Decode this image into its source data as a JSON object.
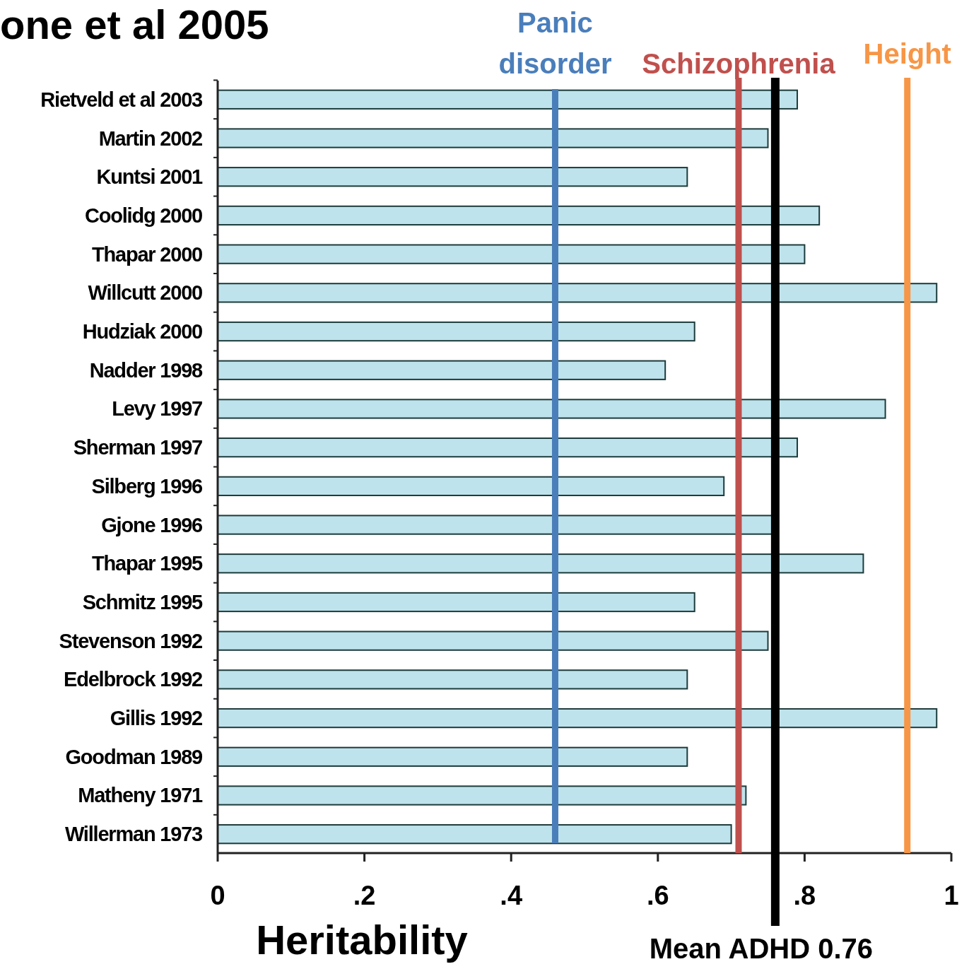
{
  "chart_data": {
    "type": "bar",
    "orientation": "horizontal",
    "title": "one et al 2005",
    "xlabel": "Heritability",
    "categories": [
      "Rietveld et al 2003",
      "Martin 2002",
      "Kuntsi 2001",
      "Coolidg 2000",
      "Thapar 2000",
      "Willcutt 2000",
      "Hudziak 2000",
      "Nadder 1998",
      "Levy 1997",
      "Sherman 1997",
      "Silberg 1996",
      "Gjone 1996",
      "Thapar 1995",
      "Schmitz 1995",
      "Stevenson 1992",
      "Edelbrock 1992",
      "Gillis 1992",
      "Goodman 1989",
      "Matheny 1971",
      "Willerman 1973"
    ],
    "values": [
      0.79,
      0.75,
      0.64,
      0.82,
      0.8,
      0.98,
      0.65,
      0.61,
      0.91,
      0.79,
      0.69,
      0.76,
      0.88,
      0.65,
      0.75,
      0.64,
      0.98,
      0.64,
      0.72,
      0.7
    ],
    "color": "#bfe3ec",
    "xlim": [
      0,
      1
    ],
    "xticks": [
      0,
      {
        "value": 0.2,
        "label": ".2"
      },
      {
        "value": 0.4,
        "label": ".4"
      },
      {
        "value": 0.6,
        "label": ".6"
      },
      {
        "value": 0.8,
        "label": ".8"
      },
      1
    ],
    "ref_lines": [
      {
        "axis": "x",
        "value": 0.46,
        "label": "Panic disorder",
        "color": "#4a7ebb"
      },
      {
        "axis": "x",
        "value": 0.71,
        "label": "Schizophrenia",
        "color": "#c0504d"
      },
      {
        "axis": "x",
        "value": 0.94,
        "label": "Height",
        "color": "#f79646"
      },
      {
        "axis": "x",
        "value": 0.76,
        "label": "Mean  ADHD 0.76",
        "color": "#000000"
      }
    ],
    "grid": false
  }
}
